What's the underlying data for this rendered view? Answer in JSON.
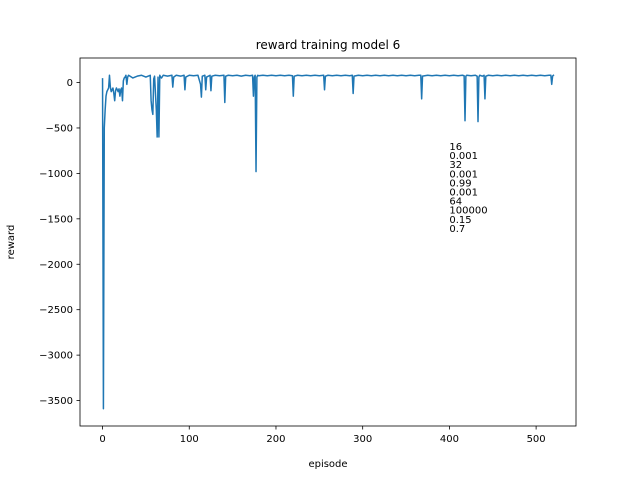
{
  "chart_data": {
    "type": "line",
    "title": "reward training model 6",
    "xlabel": "episode",
    "ylabel": "reward",
    "xlim": [
      -26,
      546
    ],
    "ylim": [
      -3780,
      270
    ],
    "xticks": [
      0,
      100,
      200,
      300,
      400,
      500
    ],
    "yticks": [
      0,
      -500,
      -1000,
      -1500,
      -2000,
      -2500,
      -3000,
      -3500
    ],
    "grid": false,
    "line_color": "#1f77b4",
    "annotation_x": 400,
    "annotation_lines": [
      "16",
      "0.001",
      "32",
      "0.001",
      "0.99",
      "0.001",
      "64",
      "100000",
      "0.15",
      "0.7"
    ],
    "series": [
      {
        "x": [
          0,
          1,
          2,
          3,
          4,
          5,
          6,
          7,
          8,
          9,
          10,
          11,
          12,
          13,
          14,
          15,
          16,
          17,
          18,
          19,
          20,
          21,
          22,
          23,
          24,
          25,
          26,
          27,
          28,
          29,
          30,
          35,
          40,
          45,
          50,
          55,
          56,
          57,
          58,
          59,
          60,
          62,
          63,
          64,
          65,
          66,
          67,
          68,
          70,
          75,
          80,
          81,
          82,
          85,
          90,
          94,
          95,
          96,
          100,
          105,
          110,
          113,
          114,
          115,
          118,
          119,
          120,
          124,
          125,
          126,
          130,
          135,
          140,
          141,
          142,
          145,
          150,
          155,
          160,
          165,
          170,
          173,
          174,
          175,
          176,
          177,
          178,
          179,
          180,
          185,
          190,
          195,
          200,
          205,
          210,
          215,
          219,
          220,
          221,
          225,
          230,
          235,
          240,
          245,
          250,
          255,
          256,
          257,
          260,
          265,
          270,
          275,
          280,
          285,
          288,
          289,
          290,
          295,
          300,
          305,
          310,
          315,
          320,
          325,
          330,
          335,
          340,
          345,
          350,
          355,
          360,
          365,
          367,
          368,
          369,
          375,
          380,
          385,
          390,
          395,
          400,
          405,
          410,
          415,
          417,
          418,
          419,
          420,
          425,
          430,
          432,
          433,
          434,
          435,
          438,
          440,
          441,
          442,
          445,
          450,
          455,
          460,
          465,
          470,
          475,
          480,
          485,
          490,
          495,
          500,
          505,
          510,
          515,
          517,
          518,
          519,
          520
        ],
        "y": [
          40,
          -3590,
          -500,
          -300,
          -150,
          -100,
          -80,
          -60,
          80,
          -50,
          -100,
          -80,
          -60,
          -120,
          -200,
          -90,
          -60,
          -80,
          -100,
          -70,
          -150,
          -80,
          -60,
          -200,
          20,
          50,
          60,
          80,
          -20,
          60,
          80,
          50,
          70,
          80,
          60,
          80,
          -200,
          -300,
          -350,
          40,
          70,
          -300,
          -600,
          60,
          -600,
          80,
          60,
          50,
          80,
          70,
          80,
          -50,
          60,
          80,
          70,
          80,
          -80,
          60,
          80,
          75,
          80,
          -20,
          -160,
          70,
          80,
          -80,
          60,
          80,
          -90,
          70,
          80,
          75,
          80,
          -220,
          70,
          80,
          75,
          80,
          70,
          80,
          75,
          80,
          -150,
          60,
          80,
          -980,
          60,
          80,
          75,
          80,
          75,
          80,
          75,
          80,
          75,
          80,
          75,
          -150,
          70,
          80,
          75,
          80,
          75,
          80,
          75,
          80,
          -80,
          70,
          80,
          75,
          80,
          75,
          80,
          75,
          80,
          -120,
          70,
          80,
          75,
          80,
          75,
          80,
          75,
          80,
          75,
          80,
          75,
          80,
          75,
          80,
          75,
          80,
          80,
          -180,
          70,
          80,
          75,
          80,
          75,
          80,
          75,
          80,
          75,
          80,
          75,
          -420,
          70,
          80,
          75,
          80,
          70,
          -430,
          60,
          80,
          70,
          80,
          -180,
          70,
          80,
          75,
          80,
          75,
          80,
          75,
          80,
          75,
          80,
          75,
          80,
          75,
          80,
          75,
          80,
          80,
          -20,
          70,
          80
        ]
      }
    ]
  }
}
